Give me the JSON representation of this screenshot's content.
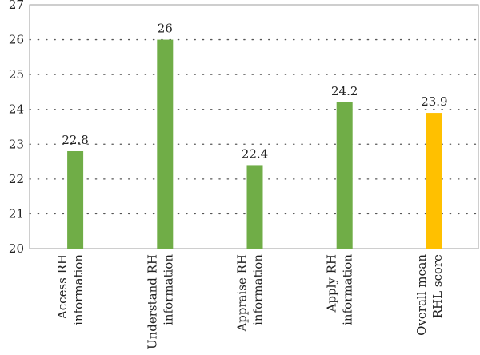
{
  "chart_data": {
    "type": "bar",
    "categories": [
      [
        "Access RH",
        "information"
      ],
      [
        "Understand RH",
        "information"
      ],
      [
        "Appraise RH",
        "information"
      ],
      [
        "Apply RH",
        "information"
      ],
      [
        "Overall mean",
        "RHL score"
      ]
    ],
    "values": [
      22.8,
      26,
      22.4,
      24.2,
      23.9
    ],
    "data_labels": [
      "22.8",
      "26",
      "22.4",
      "24.2",
      "23.9"
    ],
    "bar_colors": [
      "#70ad47",
      "#70ad47",
      "#70ad47",
      "#70ad47",
      "#ffc000"
    ],
    "ylim": [
      20,
      27
    ],
    "yticks": [
      20,
      21,
      22,
      23,
      24,
      25,
      26,
      27
    ],
    "grid": "dotted horizontal",
    "title": "",
    "xlabel": "",
    "ylabel": ""
  }
}
